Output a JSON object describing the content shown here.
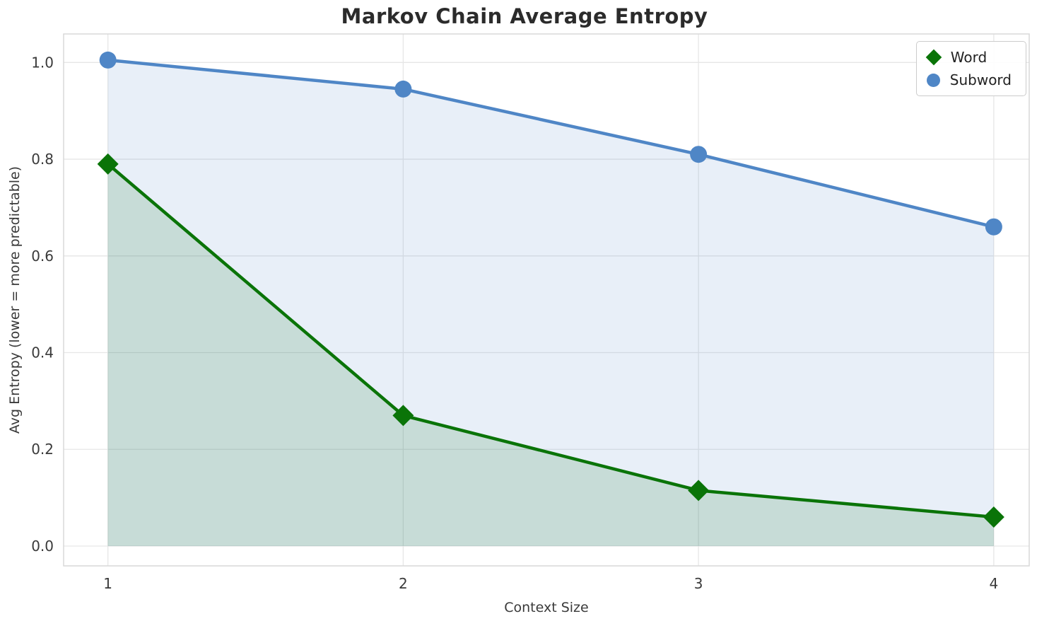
{
  "chart_data": {
    "type": "line",
    "title": "Markov Chain Average Entropy",
    "xlabel": "Context Size",
    "ylabel": "Avg Entropy (lower = more predictable)",
    "x": [
      1,
      2,
      3,
      4
    ],
    "series": [
      {
        "name": "Word",
        "values": [
          0.79,
          0.27,
          0.115,
          0.06
        ],
        "color": "#0a7408",
        "marker": "diamond",
        "fill_opacity": 0.15
      },
      {
        "name": "Subword",
        "values": [
          1.005,
          0.945,
          0.81,
          0.66
        ],
        "color": "#4f86c6",
        "marker": "circle",
        "fill_opacity": 0.13
      }
    ],
    "xticks": {
      "values": [
        1,
        2,
        3,
        4
      ],
      "labels": [
        "1",
        "2",
        "3",
        "4"
      ]
    },
    "yticks": {
      "values": [
        0.0,
        0.2,
        0.4,
        0.6,
        0.8,
        1.0
      ],
      "labels": [
        "0.0",
        "0.2",
        "0.4",
        "0.6",
        "0.8",
        "1.0"
      ]
    },
    "xlim": [
      0.85,
      4.12
    ],
    "ylim": [
      -0.041,
      1.059
    ],
    "grid": true,
    "grid_color": "#e6e6e6",
    "fill_baseline": 0,
    "legend_position": "upper right"
  }
}
